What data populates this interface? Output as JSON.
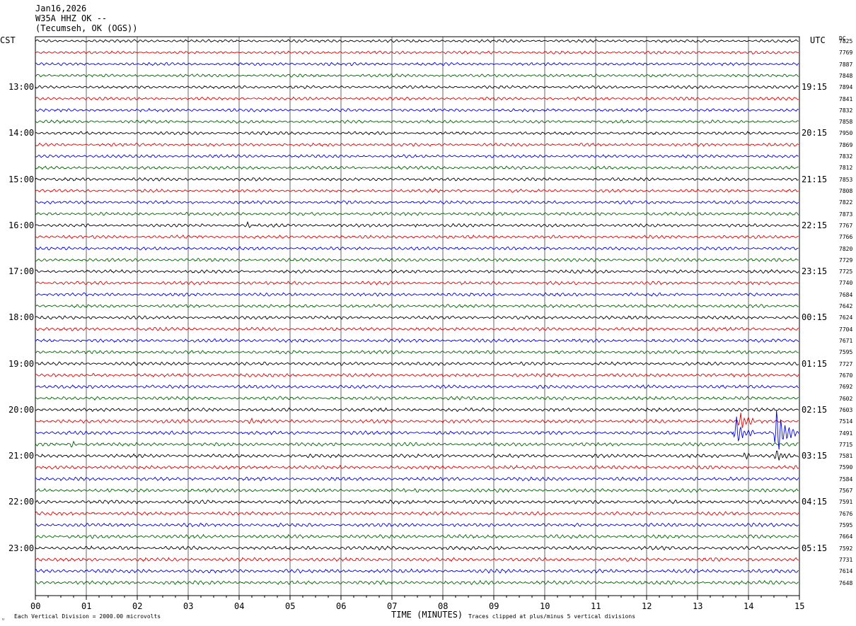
{
  "header": {
    "date": "Jan16,2026",
    "station": "W35A HHZ OK --",
    "location": "(Tecumseh, OK (OGS))"
  },
  "left_tz": "CST",
  "right_tz": "UTC",
  "dc_label": "DC",
  "footer": {
    "scale_note": "Each Vertical Division = 2000.00 microvolts",
    "clip_note": "Traces clipped at plus/minus 5 vertical divisions"
  },
  "colors": {
    "trace_cycle": [
      "#000000",
      "#e00000",
      "#0000e0",
      "#006400"
    ],
    "grid": "#000000"
  },
  "chart_data": {
    "type": "line",
    "title": "W35A HHZ OK -- (Tecumseh, OK (OGS))",
    "xlabel": "TIME (MINUTES)",
    "ylabel": "",
    "xlim": [
      0,
      15
    ],
    "x_ticks": [
      "00",
      "01",
      "02",
      "03",
      "04",
      "05",
      "06",
      "07",
      "08",
      "09",
      "10",
      "11",
      "12",
      "13",
      "14",
      "15"
    ],
    "rows_per_hour": 4,
    "minutes_per_row": 15,
    "left_hour_labels": [
      "13:00",
      "14:00",
      "15:00",
      "16:00",
      "17:00",
      "18:00",
      "19:00",
      "20:00",
      "21:00",
      "22:00",
      "23:00"
    ],
    "right_hour_labels": [
      "19:15",
      "20:15",
      "21:15",
      "22:15",
      "23:15",
      "00:15",
      "01:15",
      "02:15",
      "03:15",
      "04:15",
      "05:15"
    ],
    "dc_offsets": [
      7825,
      7769,
      7887,
      7848,
      7894,
      7841,
      7832,
      7858,
      7950,
      7869,
      7832,
      7812,
      7853,
      7808,
      7822,
      7873,
      7767,
      7766,
      7820,
      7729,
      7725,
      7740,
      7684,
      7642,
      7624,
      7704,
      7671,
      7595,
      7727,
      7670,
      7692,
      7602,
      7603,
      7514,
      7491,
      7715,
      7581,
      7590,
      7584,
      7567,
      7591,
      7676,
      7595,
      7664,
      7592,
      7731,
      7614,
      7648
    ],
    "events": [
      {
        "row": 16,
        "minute": 4.15,
        "amplitude": 0.5
      },
      {
        "row": 16,
        "minute": 7.45,
        "amplitude": 0.3
      },
      {
        "row": 27,
        "minute": 13.1,
        "amplitude": 0.3
      },
      {
        "row": 33,
        "minute": 4.2,
        "amplitude": 0.5
      },
      {
        "row": 33,
        "minute": 13.85,
        "amplitude": 1.6
      },
      {
        "row": 34,
        "minute": 13.75,
        "amplitude": 2.5
      },
      {
        "row": 34,
        "minute": 14.55,
        "amplitude": 5.0
      },
      {
        "row": 35,
        "minute": 0.7,
        "amplitude": 0.5
      },
      {
        "row": 36,
        "minute": 13.9,
        "amplitude": 0.6
      },
      {
        "row": 36,
        "minute": 14.55,
        "amplitude": 1.2
      }
    ]
  }
}
